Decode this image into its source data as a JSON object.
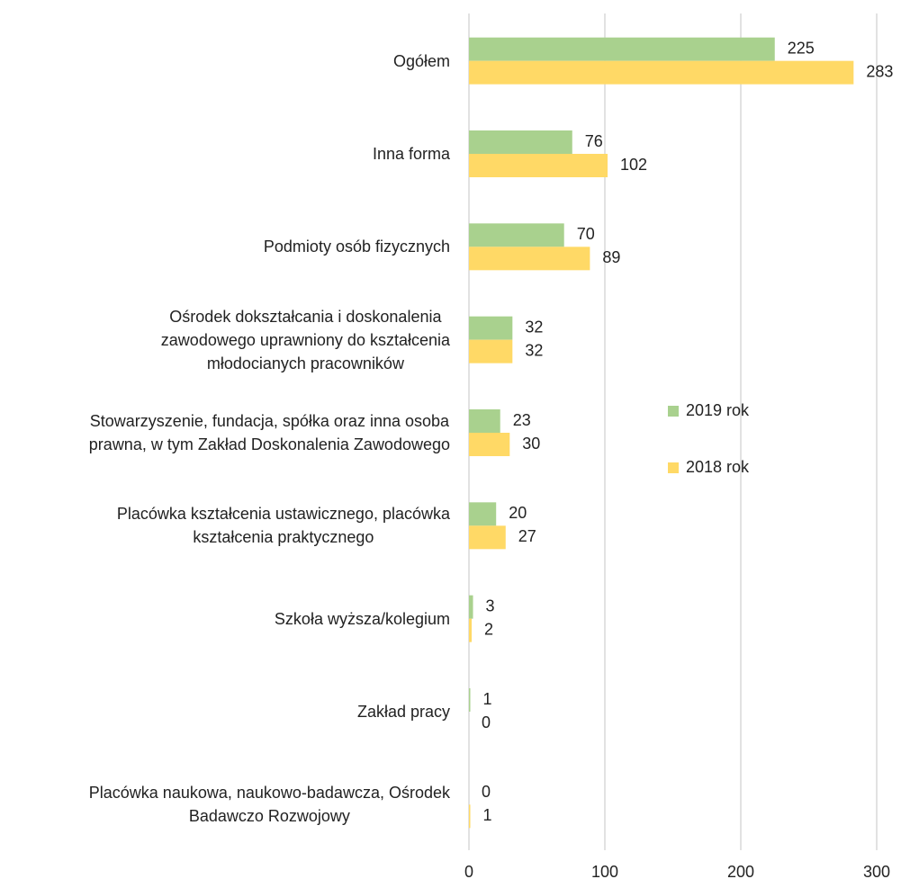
{
  "chart_data": {
    "type": "bar",
    "orientation": "horizontal",
    "categories": [
      "Ogółem",
      "Inna forma",
      "Podmioty osób fizycznych",
      "Ośrodek dokształcania i doskonalenia\nzawodowego uprawniony do kształcenia\nmłodocianych  pracowników",
      "Stowarzyszenie, fundacja, spółka oraz inna osoba\nprawna, w tym Zakład Doskonalenia Zawodowego",
      "Placówka kształcenia ustawicznego, placówka\nkształcenia praktycznego",
      "Szkoła wyższa/kolegium",
      "Zakład pracy",
      "Placówka naukowa, naukowo-badawcza, Ośrodek\nBadawczo Rozwojowy"
    ],
    "series": [
      {
        "name": "2019 rok",
        "color": "#a9d18e",
        "values": [
          225,
          76,
          70,
          32,
          23,
          20,
          3,
          1,
          0
        ]
      },
      {
        "name": "2018 rok",
        "color": "#ffd966",
        "values": [
          283,
          102,
          89,
          32,
          30,
          27,
          2,
          0,
          1
        ]
      }
    ],
    "xlim": [
      0,
      300
    ],
    "xticks": [
      0,
      100,
      200,
      300
    ],
    "grid": true,
    "legend": "right"
  }
}
